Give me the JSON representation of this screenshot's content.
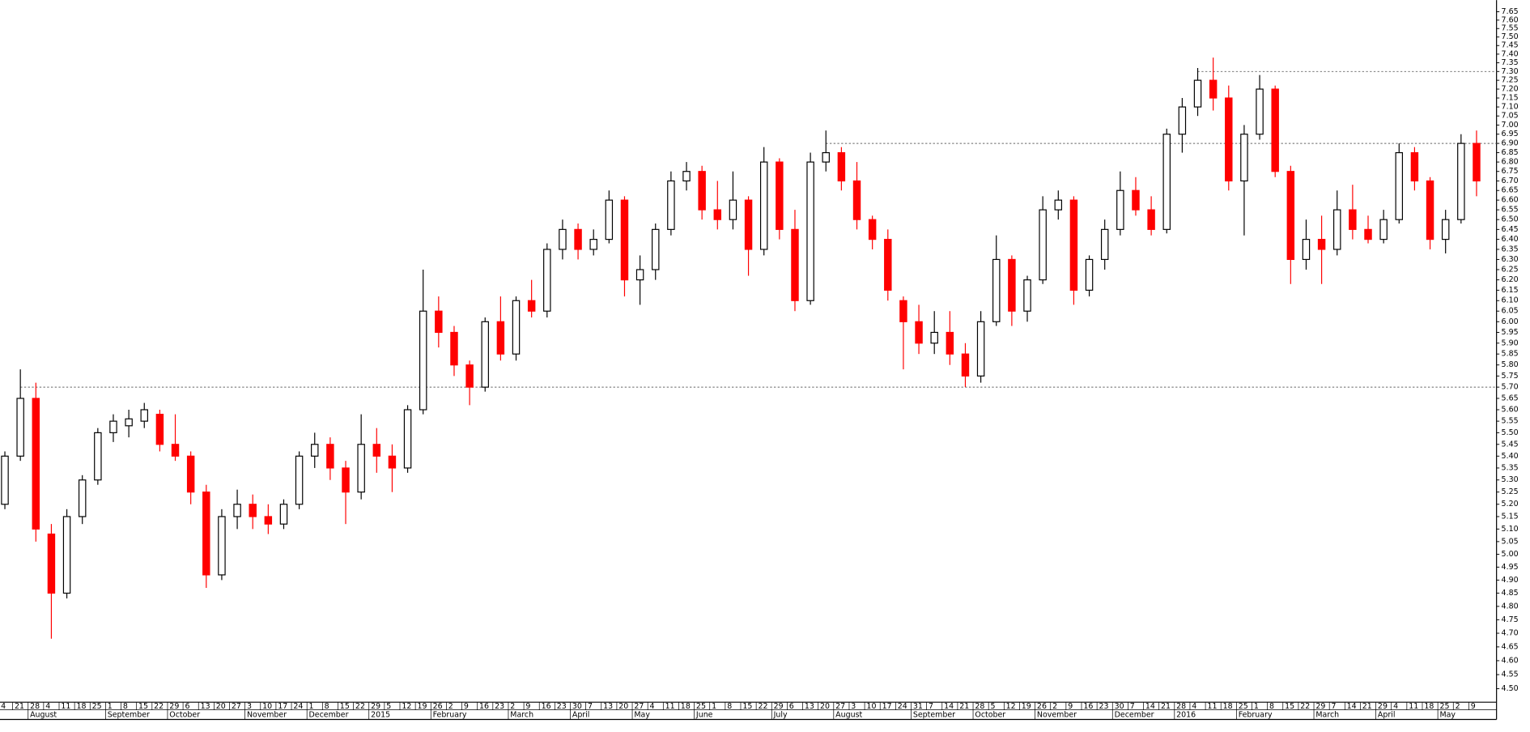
{
  "chart_data": {
    "type": "candlestick",
    "log_scale": true,
    "up_color": "#000000",
    "down_color": "#ff0000",
    "categories": [
      "4",
      "21",
      "28",
      "4",
      "11",
      "18",
      "25",
      "1",
      "8",
      "15",
      "22",
      "29",
      "6",
      "13",
      "20",
      "27",
      "3",
      "10",
      "17",
      "24",
      "1",
      "8",
      "15",
      "22",
      "29",
      "5",
      "12",
      "19",
      "26",
      "2",
      "9",
      "16",
      "23",
      "2",
      "9",
      "16",
      "23",
      "30",
      "7",
      "13",
      "20",
      "27",
      "4",
      "11",
      "18",
      "25",
      "1",
      "8",
      "15",
      "22",
      "29",
      "6",
      "13",
      "20",
      "27",
      "3",
      "10",
      "17",
      "24",
      "31",
      "7",
      "14",
      "21",
      "28",
      "5",
      "12",
      "19",
      "26",
      "2",
      "9",
      "16",
      "23",
      "30",
      "7",
      "14",
      "21",
      "28",
      "4",
      "11",
      "18",
      "25",
      "1",
      "8",
      "15",
      "22",
      "29",
      "7",
      "14",
      "21",
      "29",
      "4",
      "11",
      "18",
      "25",
      "2",
      "9"
    ],
    "months": [
      null,
      null,
      "August",
      null,
      null,
      null,
      null,
      "September",
      null,
      null,
      null,
      "October",
      null,
      null,
      null,
      null,
      "November",
      null,
      null,
      null,
      "December",
      null,
      null,
      null,
      "2015",
      null,
      null,
      null,
      "February",
      null,
      null,
      null,
      null,
      "March",
      null,
      null,
      null,
      "April",
      null,
      null,
      null,
      "May",
      null,
      null,
      null,
      "June",
      null,
      null,
      null,
      null,
      "July",
      null,
      null,
      null,
      "August",
      null,
      null,
      null,
      null,
      "September",
      null,
      null,
      null,
      "October",
      null,
      null,
      null,
      "November",
      null,
      null,
      null,
      null,
      "December",
      null,
      null,
      null,
      "2016",
      null,
      null,
      null,
      "February",
      null,
      null,
      null,
      null,
      "March",
      null,
      null,
      null,
      "April",
      null,
      null,
      null,
      "May",
      null,
      null
    ],
    "open": [
      5.2,
      5.4,
      5.65,
      5.08,
      4.85,
      5.15,
      5.3,
      5.5,
      5.53,
      5.55,
      5.58,
      5.45,
      5.4,
      5.25,
      4.92,
      5.15,
      5.2,
      5.15,
      5.12,
      5.2,
      5.4,
      5.45,
      5.35,
      5.25,
      5.45,
      5.4,
      5.35,
      5.6,
      6.05,
      5.95,
      5.8,
      5.7,
      6.0,
      5.85,
      6.1,
      6.05,
      6.35,
      6.45,
      6.35,
      6.4,
      6.6,
      6.2,
      6.25,
      6.45,
      6.7,
      6.75,
      6.55,
      6.5,
      6.6,
      6.35,
      6.8,
      6.45,
      6.1,
      6.8,
      6.85,
      6.7,
      6.5,
      6.4,
      6.1,
      6.0,
      5.9,
      5.95,
      5.85,
      5.75,
      6.0,
      6.3,
      6.05,
      6.2,
      6.55,
      6.6,
      6.15,
      6.3,
      6.45,
      6.65,
      6.55,
      6.45,
      6.95,
      7.1,
      7.25,
      7.15,
      6.7,
      6.95,
      7.2,
      6.75,
      6.3,
      6.4,
      6.35,
      6.55,
      6.45,
      6.4,
      6.5,
      6.85,
      6.7,
      6.4,
      6.5,
      6.9
    ],
    "high": [
      5.42,
      5.78,
      5.72,
      5.12,
      5.18,
      5.32,
      5.52,
      5.58,
      5.6,
      5.63,
      5.6,
      5.58,
      5.42,
      5.28,
      5.18,
      5.26,
      5.24,
      5.2,
      5.22,
      5.42,
      5.5,
      5.48,
      5.38,
      5.58,
      5.52,
      5.45,
      5.62,
      6.25,
      6.12,
      5.98,
      5.82,
      6.02,
      6.12,
      6.12,
      6.2,
      6.38,
      6.5,
      6.48,
      6.45,
      6.65,
      6.62,
      6.32,
      6.48,
      6.75,
      6.8,
      6.78,
      6.7,
      6.75,
      6.62,
      6.88,
      6.82,
      6.55,
      6.85,
      6.97,
      6.88,
      6.8,
      6.52,
      6.45,
      6.12,
      6.08,
      6.05,
      6.05,
      5.9,
      6.05,
      6.42,
      6.32,
      6.22,
      6.62,
      6.65,
      6.62,
      6.32,
      6.5,
      6.75,
      6.72,
      6.62,
      6.98,
      7.15,
      7.32,
      7.38,
      7.22,
      7.0,
      7.28,
      7.22,
      6.78,
      6.5,
      6.52,
      6.65,
      6.68,
      6.52,
      6.55,
      6.9,
      6.88,
      6.72,
      6.55,
      6.95,
      6.97
    ],
    "low": [
      5.18,
      5.38,
      5.05,
      4.68,
      4.83,
      5.12,
      5.28,
      5.46,
      5.48,
      5.52,
      5.42,
      5.38,
      5.2,
      4.87,
      4.9,
      5.1,
      5.1,
      5.08,
      5.1,
      5.18,
      5.35,
      5.3,
      5.12,
      5.22,
      5.33,
      5.25,
      5.33,
      5.58,
      5.88,
      5.75,
      5.62,
      5.68,
      5.82,
      5.82,
      6.02,
      6.02,
      6.3,
      6.3,
      6.32,
      6.38,
      6.12,
      6.08,
      6.2,
      6.42,
      6.65,
      6.5,
      6.45,
      6.45,
      6.22,
      6.32,
      6.4,
      6.05,
      6.08,
      6.75,
      6.65,
      6.45,
      6.35,
      6.1,
      5.78,
      5.85,
      5.85,
      5.8,
      5.7,
      5.72,
      5.98,
      5.98,
      6.0,
      6.18,
      6.5,
      6.08,
      6.12,
      6.25,
      6.42,
      6.52,
      6.42,
      6.43,
      6.85,
      7.05,
      7.08,
      6.65,
      6.42,
      6.92,
      6.72,
      6.18,
      6.25,
      6.18,
      6.32,
      6.4,
      6.38,
      6.38,
      6.48,
      6.65,
      6.35,
      6.33,
      6.48,
      6.62
    ],
    "close": [
      5.4,
      5.65,
      5.1,
      4.85,
      5.15,
      5.3,
      5.5,
      5.55,
      5.56,
      5.6,
      5.45,
      5.4,
      5.25,
      4.92,
      5.15,
      5.2,
      5.15,
      5.12,
      5.2,
      5.4,
      5.45,
      5.35,
      5.25,
      5.45,
      5.4,
      5.35,
      5.6,
      6.05,
      5.95,
      5.8,
      5.7,
      6.0,
      5.85,
      6.1,
      6.05,
      6.35,
      6.45,
      6.35,
      6.4,
      6.6,
      6.2,
      6.25,
      6.45,
      6.7,
      6.75,
      6.55,
      6.5,
      6.6,
      6.35,
      6.8,
      6.45,
      6.1,
      6.8,
      6.85,
      6.7,
      6.5,
      6.4,
      6.15,
      6.0,
      5.9,
      5.95,
      5.85,
      5.75,
      6.0,
      6.3,
      6.05,
      6.2,
      6.55,
      6.6,
      6.15,
      6.3,
      6.45,
      6.65,
      6.55,
      6.45,
      6.95,
      7.1,
      7.25,
      7.15,
      6.7,
      6.95,
      7.2,
      6.75,
      6.3,
      6.4,
      6.35,
      6.55,
      6.45,
      6.4,
      6.5,
      6.85,
      6.7,
      6.4,
      6.5,
      6.9,
      6.7
    ],
    "reference_lines": [
      5.7,
      6.9,
      7.3
    ],
    "ylim": [
      4.456,
      7.72
    ],
    "yticks": [
      {
        "value": 4.5,
        "label": "4.50"
      },
      {
        "value": 4.55,
        "label": "4.55"
      },
      {
        "value": 4.6,
        "label": "4.60"
      },
      {
        "value": 4.65,
        "label": "4.65"
      },
      {
        "value": 4.7,
        "label": "4.70"
      },
      {
        "value": 4.75,
        "label": "4.75"
      },
      {
        "value": 4.8,
        "label": "4.80"
      },
      {
        "value": 4.85,
        "label": "4.85"
      },
      {
        "value": 4.9,
        "label": "4.90"
      },
      {
        "value": 4.95,
        "label": "4.95"
      },
      {
        "value": 5.0,
        "label": "5.00"
      },
      {
        "value": 5.05,
        "label": "5.05"
      },
      {
        "value": 5.1,
        "label": "5.10"
      },
      {
        "value": 5.15,
        "label": "5.15"
      },
      {
        "value": 5.2,
        "label": "5.20"
      },
      {
        "value": 5.25,
        "label": "5.25"
      },
      {
        "value": 5.3,
        "label": "5.30"
      },
      {
        "value": 5.35,
        "label": "5.35"
      },
      {
        "value": 5.4,
        "label": "5.40"
      },
      {
        "value": 5.45,
        "label": "5.45"
      },
      {
        "value": 5.5,
        "label": "5.50"
      },
      {
        "value": 5.55,
        "label": "5.55"
      },
      {
        "value": 5.6,
        "label": "5.60"
      },
      {
        "value": 5.65,
        "label": "5.65"
      },
      {
        "value": 5.7,
        "label": "5.70"
      },
      {
        "value": 5.75,
        "label": "5.75"
      },
      {
        "value": 5.8,
        "label": "5.80"
      },
      {
        "value": 5.85,
        "label": "5.85"
      },
      {
        "value": 5.9,
        "label": "5.90"
      },
      {
        "value": 5.95,
        "label": "5.95"
      },
      {
        "value": 6.0,
        "label": "6.00"
      },
      {
        "value": 6.05,
        "label": "6.05"
      },
      {
        "value": 6.1,
        "label": "6.10"
      },
      {
        "value": 6.15,
        "label": "6.15"
      },
      {
        "value": 6.2,
        "label": "6.20"
      },
      {
        "value": 6.25,
        "label": "6.25"
      },
      {
        "value": 6.3,
        "label": "6.30"
      },
      {
        "value": 6.35,
        "label": "6.35"
      },
      {
        "value": 6.4,
        "label": "6.40"
      },
      {
        "value": 6.45,
        "label": "6.45"
      },
      {
        "value": 6.5,
        "label": "6.50"
      },
      {
        "value": 6.55,
        "label": "6.55"
      },
      {
        "value": 6.6,
        "label": "6.60"
      },
      {
        "value": 6.65,
        "label": "6.65"
      },
      {
        "value": 6.7,
        "label": "6.70"
      },
      {
        "value": 6.75,
        "label": "6.75"
      },
      {
        "value": 6.8,
        "label": "6.80"
      },
      {
        "value": 6.85,
        "label": "6.85"
      },
      {
        "value": 6.9,
        "label": "6.90"
      },
      {
        "value": 6.95,
        "label": "6.95"
      },
      {
        "value": 7.0,
        "label": "7.00"
      },
      {
        "value": 7.05,
        "label": "7.05"
      },
      {
        "value": 7.1,
        "label": "7.10"
      },
      {
        "value": 7.15,
        "label": "7.15"
      },
      {
        "value": 7.2,
        "label": "7.20"
      },
      {
        "value": 7.25,
        "label": "7.25"
      },
      {
        "value": 7.3,
        "label": "7.30"
      },
      {
        "value": 7.35,
        "label": "7.35"
      },
      {
        "value": 7.4,
        "label": "7.40"
      },
      {
        "value": 7.45,
        "label": "7.45"
      },
      {
        "value": 7.5,
        "label": "7.50"
      },
      {
        "value": 7.55,
        "label": "7.55"
      },
      {
        "value": 7.6,
        "label": "7.60"
      },
      {
        "value": 7.65,
        "label": "7.65"
      }
    ]
  }
}
